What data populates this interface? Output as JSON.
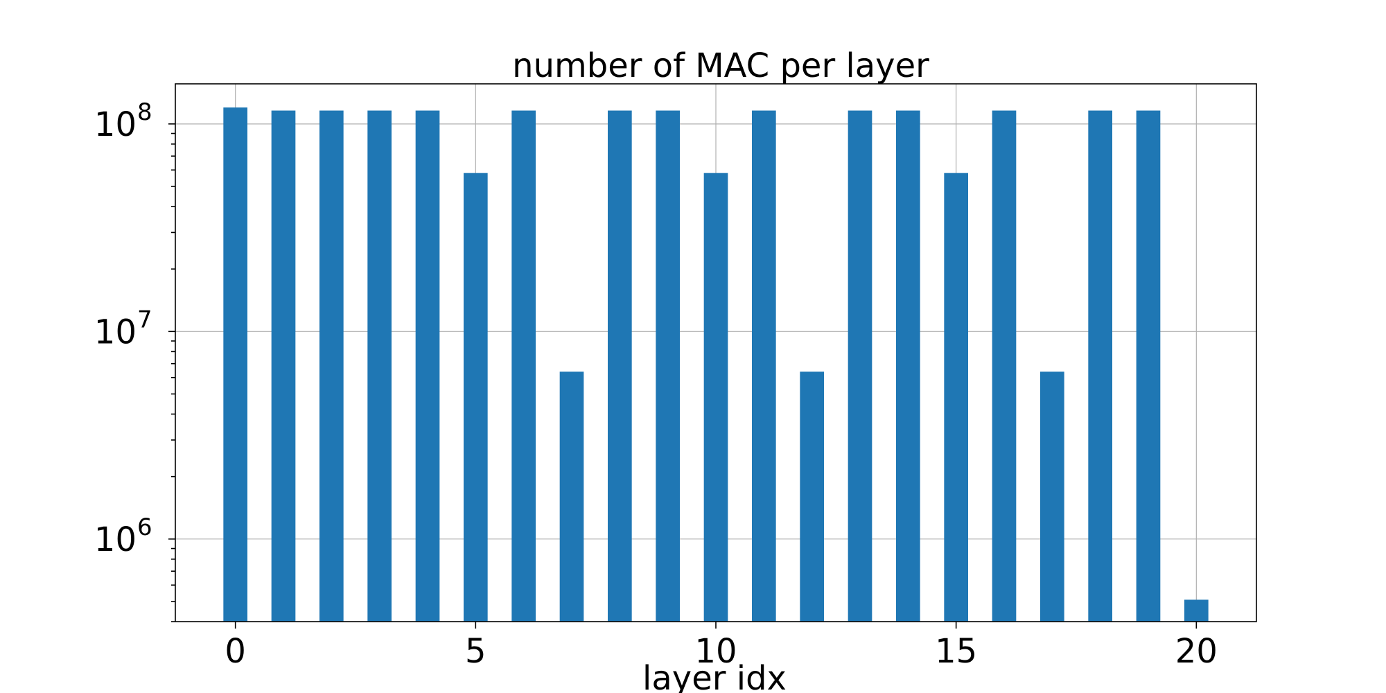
{
  "chart_data": {
    "type": "bar",
    "title": "number of MAC per layer",
    "xlabel": "layer idx",
    "ylabel": "",
    "yscale": "log",
    "grid": true,
    "color": "#1f77b4",
    "categories": [
      0,
      1,
      2,
      3,
      4,
      5,
      6,
      7,
      8,
      9,
      10,
      11,
      12,
      13,
      14,
      15,
      16,
      17,
      18,
      19,
      20
    ],
    "values": [
      120000000,
      116000000,
      116000000,
      116000000,
      116000000,
      58000000,
      116000000,
      6400000,
      116000000,
      116000000,
      58000000,
      116000000,
      6400000,
      116000000,
      116000000,
      58000000,
      116000000,
      6400000,
      116000000,
      116000000,
      510000
    ],
    "xlim": [
      -1.25,
      21.25
    ],
    "ylim": [
      400000,
      156000000
    ],
    "xticks": [
      {
        "value": 0,
        "label": "0"
      },
      {
        "value": 5,
        "label": "5"
      },
      {
        "value": 10,
        "label": "10"
      },
      {
        "value": 15,
        "label": "15"
      },
      {
        "value": 20,
        "label": "20"
      }
    ],
    "yticks": [
      {
        "value": 1000000,
        "base": "10",
        "exp": "6"
      },
      {
        "value": 10000000,
        "base": "10",
        "exp": "7"
      },
      {
        "value": 100000000,
        "base": "10",
        "exp": "8"
      }
    ]
  }
}
